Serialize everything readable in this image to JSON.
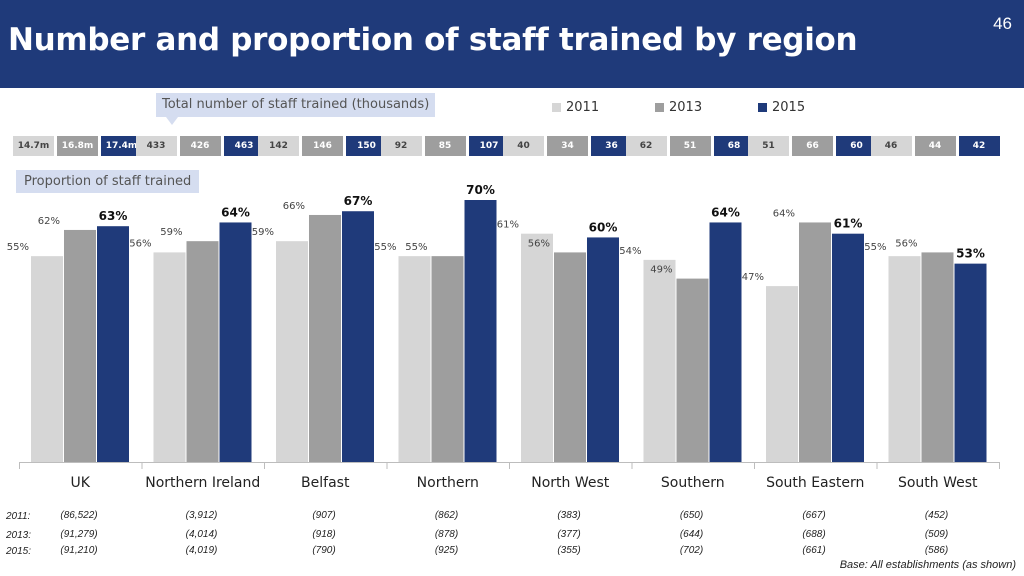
{
  "page": {
    "title": "Number and proportion of staff trained by region",
    "page_number": "46",
    "totals_label": "Total number of staff trained (thousands)",
    "proportion_label": "Proportion of staff trained",
    "base_note": "Base: All establishments (as shown)"
  },
  "colors": {
    "y2011": "#d6d6d6",
    "y2013": "#9e9e9e",
    "y2015": "#1f3a7a",
    "header": "#1f3a7a"
  },
  "chart_data": {
    "type": "bar",
    "ylim": [
      0,
      80
    ],
    "categories": [
      "UK",
      "Northern Ireland",
      "Belfast",
      "Northern",
      "North West",
      "Southern",
      "South Eastern",
      "South West"
    ],
    "series": [
      {
        "name": "2011",
        "values": [
          55,
          56,
          59,
          55,
          61,
          54,
          47,
          55
        ],
        "labels": [
          "55%",
          "56%",
          "59%",
          "55%",
          "61%",
          "54%",
          "47%",
          "55%"
        ]
      },
      {
        "name": "2013",
        "values": [
          62,
          59,
          66,
          55,
          56,
          49,
          64,
          56
        ],
        "labels": [
          "62%",
          "59%",
          "66%",
          "55%",
          "56%",
          "49%",
          "64%",
          "56%"
        ]
      },
      {
        "name": "2015",
        "values": [
          63,
          64,
          67,
          70,
          60,
          64,
          61,
          53
        ],
        "labels": [
          "63%",
          "64%",
          "67%",
          "70%",
          "60%",
          "64%",
          "61%",
          "53%"
        ]
      }
    ],
    "totals": [
      [
        "14.7m",
        "16.8m",
        "17.4m"
      ],
      [
        "433",
        "426",
        "463"
      ],
      [
        "142",
        "146",
        "150"
      ],
      [
        "92",
        "85",
        "107"
      ],
      [
        "40",
        "34",
        "36"
      ],
      [
        "62",
        "51",
        "68"
      ],
      [
        "51",
        "66",
        "60"
      ],
      [
        "46",
        "44",
        "42"
      ]
    ],
    "bases": {
      "row_labels": [
        "2011:",
        "2013:",
        "2015:"
      ],
      "values": [
        [
          "(86,522)",
          "(3,912)",
          "(907)",
          "(862)",
          "(383)",
          "(650)",
          "(667)",
          "(452)"
        ],
        [
          "(91,279)",
          "(4,014)",
          "(918)",
          "(878)",
          "(377)",
          "(644)",
          "(688)",
          "(509)"
        ],
        [
          "(91,210)",
          "(4,019)",
          "(790)",
          "(925)",
          "(355)",
          "(702)",
          "(661)",
          "(586)"
        ]
      ]
    }
  }
}
